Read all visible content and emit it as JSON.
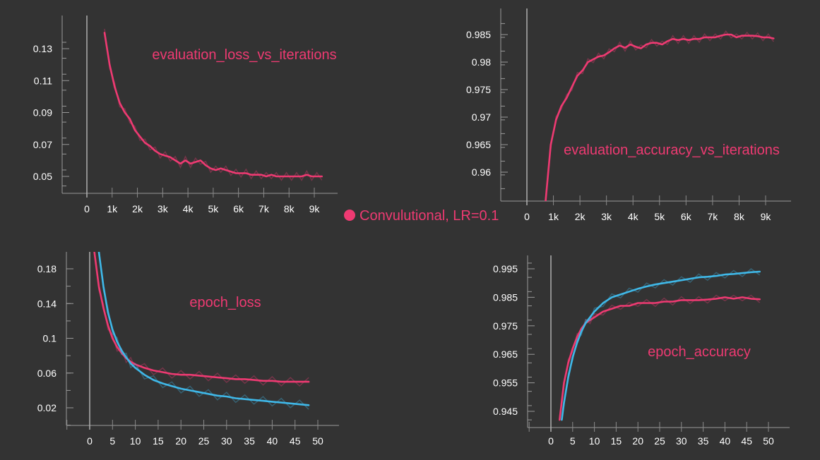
{
  "colors": {
    "background": "#333333",
    "axis": "#9a9a9a",
    "grid": "#8a8a8a",
    "zero_line": "#b0b0b0",
    "tick_text": "#ffffff",
    "convolutional": "#ee3a72",
    "second_series": "#3fb8e8"
  },
  "legend": {
    "label": "Convulutional, LR=0.1",
    "marker_color": "#ee3a72"
  },
  "chart_data": [
    {
      "type": "line",
      "title": "evaluation_loss_vs_iterations",
      "xlabel": "",
      "ylabel": "",
      "xlim": [
        -1000,
        10000
      ],
      "ylim": [
        0.044,
        0.14
      ],
      "x_ticks": [
        0,
        1000,
        2000,
        3000,
        4000,
        5000,
        6000,
        7000,
        8000,
        9000
      ],
      "x_tick_labels": [
        "0",
        "1k",
        "2k",
        "3k",
        "4k",
        "5k",
        "6k",
        "7k",
        "8k",
        "9k"
      ],
      "y_ticks": [
        0.05,
        0.07,
        0.09,
        0.11,
        0.13
      ],
      "y_tick_labels": [
        "0.05",
        "0.07",
        "0.09",
        "0.11",
        "0.13"
      ],
      "grid": true,
      "series": [
        {
          "name": "Convulutional, LR=0.1",
          "color": "#ee3a72",
          "x": [
            700,
            900,
            1100,
            1300,
            1500,
            1700,
            1900,
            2100,
            2300,
            2500,
            2700,
            2900,
            3100,
            3300,
            3500,
            3700,
            3900,
            4100,
            4300,
            4500,
            4700,
            4900,
            5100,
            5300,
            5500,
            5700,
            5900,
            6100,
            6300,
            6500,
            6700,
            6900,
            7100,
            7300,
            7500,
            7700,
            7900,
            8100,
            8300,
            8500,
            8700,
            8900,
            9100,
            9300
          ],
          "y": [
            0.14,
            0.12,
            0.106,
            0.096,
            0.09,
            0.086,
            0.079,
            0.075,
            0.071,
            0.069,
            0.066,
            0.064,
            0.063,
            0.062,
            0.06,
            0.058,
            0.06,
            0.058,
            0.059,
            0.06,
            0.057,
            0.055,
            0.054,
            0.055,
            0.054,
            0.053,
            0.052,
            0.052,
            0.052,
            0.051,
            0.051,
            0.051,
            0.05,
            0.051,
            0.05,
            0.05,
            0.05,
            0.05,
            0.05,
            0.05,
            0.051,
            0.05,
            0.05,
            0.05
          ]
        }
      ]
    },
    {
      "type": "line",
      "title": "evaluation_accuracy_vs_iterations",
      "xlabel": "",
      "ylabel": "",
      "xlim": [
        -1000,
        10000
      ],
      "ylim": [
        0.9545,
        0.9875
      ],
      "x_ticks": [
        0,
        1000,
        2000,
        3000,
        4000,
        5000,
        6000,
        7000,
        8000,
        9000
      ],
      "x_tick_labels": [
        "0",
        "1k",
        "2k",
        "3k",
        "4k",
        "5k",
        "6k",
        "7k",
        "8k",
        "9k"
      ],
      "y_ticks": [
        0.96,
        0.965,
        0.97,
        0.975,
        0.98,
        0.985
      ],
      "y_tick_labels": [
        "0.96",
        "0.965",
        "0.97",
        "0.975",
        "0.98",
        "0.985"
      ],
      "grid": true,
      "series": [
        {
          "name": "Convulutional, LR=0.1",
          "color": "#ee3a72",
          "x": [
            700,
            900,
            1100,
            1300,
            1500,
            1700,
            1900,
            2100,
            2300,
            2500,
            2700,
            2900,
            3100,
            3300,
            3500,
            3700,
            3900,
            4100,
            4300,
            4500,
            4700,
            4900,
            5100,
            5300,
            5500,
            5700,
            5900,
            6100,
            6300,
            6500,
            6700,
            6900,
            7100,
            7300,
            7500,
            7700,
            7900,
            8100,
            8300,
            8500,
            8700,
            8900,
            9100,
            9300
          ],
          "y": [
            0.9545,
            0.965,
            0.9695,
            0.972,
            0.9735,
            0.9755,
            0.9775,
            0.9785,
            0.98,
            0.9805,
            0.981,
            0.9812,
            0.9818,
            0.9825,
            0.983,
            0.9826,
            0.9832,
            0.9828,
            0.9825,
            0.9832,
            0.9835,
            0.9835,
            0.9832,
            0.9838,
            0.9842,
            0.984,
            0.9842,
            0.984,
            0.9842,
            0.9842,
            0.9845,
            0.9845,
            0.9845,
            0.9848,
            0.985,
            0.985,
            0.9845,
            0.9848,
            0.9848,
            0.9848,
            0.9847,
            0.9845,
            0.9845,
            0.9843
          ]
        }
      ]
    },
    {
      "type": "line",
      "title": "epoch_loss",
      "xlabel": "",
      "ylabel": "",
      "xlim": [
        -5,
        55
      ],
      "ylim": [
        0.0,
        0.2
      ],
      "x_ticks": [
        0,
        5,
        10,
        15,
        20,
        25,
        30,
        35,
        40,
        45,
        50
      ],
      "x_tick_labels": [
        "0",
        "5",
        "10",
        "15",
        "20",
        "25",
        "30",
        "35",
        "40",
        "45",
        "50"
      ],
      "y_ticks": [
        0.02,
        0.06,
        0.1,
        0.14,
        0.18
      ],
      "y_tick_labels": [
        "0.02",
        "0.06",
        "0.1",
        "0.14",
        "0.18"
      ],
      "grid": true,
      "series": [
        {
          "name": "Convulutional, LR=0.1",
          "color": "#ee3a72",
          "x": [
            1,
            2,
            3,
            4,
            5,
            6,
            7,
            8,
            9,
            10,
            12,
            14,
            16,
            18,
            20,
            22,
            24,
            26,
            28,
            30,
            32,
            34,
            36,
            38,
            40,
            42,
            44,
            46,
            48
          ],
          "y": [
            0.2,
            0.16,
            0.135,
            0.115,
            0.1,
            0.09,
            0.083,
            0.077,
            0.073,
            0.07,
            0.066,
            0.063,
            0.061,
            0.059,
            0.058,
            0.058,
            0.057,
            0.056,
            0.055,
            0.054,
            0.053,
            0.053,
            0.052,
            0.051,
            0.051,
            0.05,
            0.05,
            0.05,
            0.05
          ]
        },
        {
          "name": "",
          "color": "#3fb8e8",
          "x": [
            2,
            3,
            4,
            5,
            6,
            7,
            8,
            9,
            10,
            12,
            14,
            16,
            18,
            20,
            22,
            24,
            26,
            28,
            30,
            32,
            34,
            36,
            38,
            40,
            42,
            44,
            46,
            48
          ],
          "y": [
            0.2,
            0.16,
            0.13,
            0.11,
            0.096,
            0.086,
            0.078,
            0.071,
            0.066,
            0.058,
            0.052,
            0.048,
            0.045,
            0.042,
            0.04,
            0.038,
            0.036,
            0.034,
            0.033,
            0.031,
            0.03,
            0.029,
            0.028,
            0.027,
            0.026,
            0.025,
            0.024,
            0.023
          ]
        }
      ]
    },
    {
      "type": "line",
      "title": "epoch_accuracy",
      "xlabel": "",
      "ylabel": "",
      "xlim": [
        -5,
        55
      ],
      "ylim": [
        0.942,
        0.9975
      ],
      "x_ticks": [
        0,
        5,
        10,
        15,
        20,
        25,
        30,
        35,
        40,
        45,
        50
      ],
      "x_tick_labels": [
        "0",
        "5",
        "10",
        "15",
        "20",
        "25",
        "30",
        "35",
        "40",
        "45",
        "50"
      ],
      "y_ticks": [
        0.945,
        0.955,
        0.965,
        0.975,
        0.985,
        0.995
      ],
      "y_tick_labels": [
        "0.945",
        "0.955",
        "0.965",
        "0.975",
        "0.985",
        "0.995"
      ],
      "grid": true,
      "series": [
        {
          "name": "Convulutional, LR=0.1",
          "color": "#ee3a72",
          "x": [
            2,
            3,
            4,
            5,
            6,
            7,
            8,
            9,
            10,
            12,
            14,
            16,
            18,
            20,
            22,
            24,
            26,
            28,
            30,
            32,
            34,
            36,
            38,
            40,
            42,
            44,
            46,
            48
          ],
          "y": [
            0.942,
            0.955,
            0.962,
            0.967,
            0.971,
            0.974,
            0.976,
            0.977,
            0.978,
            0.98,
            0.981,
            0.982,
            0.982,
            0.983,
            0.983,
            0.983,
            0.9835,
            0.9835,
            0.984,
            0.984,
            0.984,
            0.9842,
            0.9845,
            0.985,
            0.9845,
            0.985,
            0.9845,
            0.9843
          ]
        },
        {
          "name": "",
          "color": "#3fb8e8",
          "x": [
            2.5,
            3,
            4,
            5,
            6,
            7,
            8,
            9,
            10,
            12,
            14,
            16,
            18,
            20,
            22,
            24,
            26,
            28,
            30,
            32,
            34,
            36,
            38,
            40,
            42,
            44,
            46,
            48
          ],
          "y": [
            0.942,
            0.948,
            0.957,
            0.964,
            0.969,
            0.973,
            0.976,
            0.978,
            0.98,
            0.983,
            0.985,
            0.986,
            0.987,
            0.988,
            0.9888,
            0.9895,
            0.99,
            0.9905,
            0.991,
            0.9915,
            0.992,
            0.9922,
            0.9925,
            0.993,
            0.9932,
            0.9935,
            0.9938,
            0.994
          ]
        }
      ]
    }
  ]
}
